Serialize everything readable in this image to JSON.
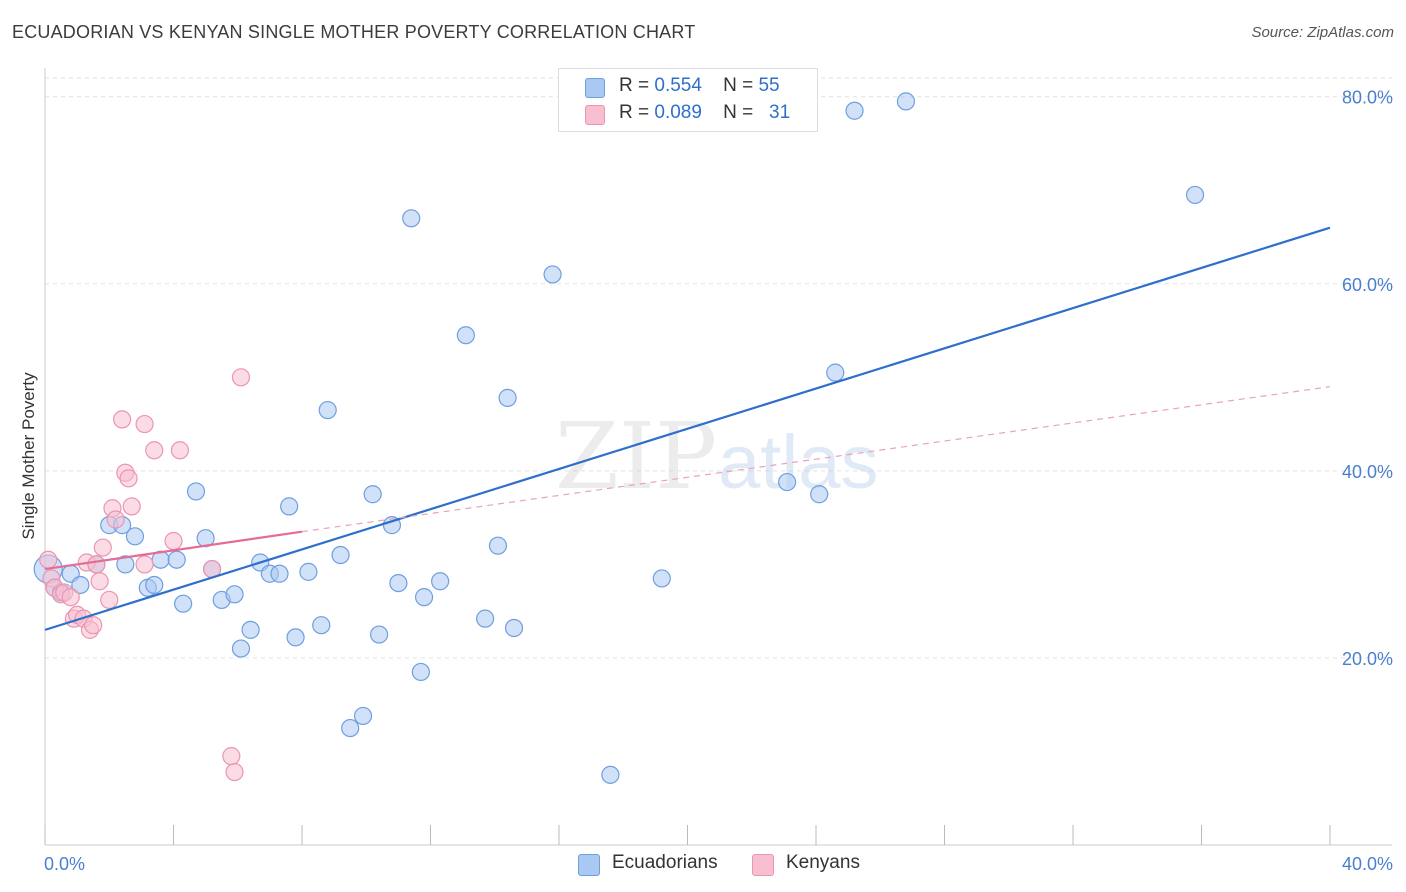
{
  "title": "ECUADORIAN VS KENYAN SINGLE MOTHER POVERTY CORRELATION CHART",
  "source": "Source: ZipAtlas.com",
  "watermark": {
    "zip": "ZIP",
    "atlas": "atlas"
  },
  "legend": {
    "rows": [
      {
        "r_label": "R =",
        "r_value": "0.554",
        "n_label": "N =",
        "n_value": "55",
        "color": "#a9c8f2",
        "border": "#6f9fdf"
      },
      {
        "r_label": "R =",
        "r_value": "0.089",
        "n_label": "N =",
        "n_value": "31",
        "color": "#f7bfd0",
        "border": "#ec94b1"
      }
    ]
  },
  "chart_data": {
    "type": "scatter",
    "title": "ECUADORIAN VS KENYAN SINGLE MOTHER POVERTY CORRELATION CHART",
    "xlabel": "",
    "ylabel": "Single Mother Poverty",
    "xlim": [
      0,
      40
    ],
    "ylim": [
      0,
      82
    ],
    "x_tick_labels": [
      "0.0%",
      "40.0%"
    ],
    "y_ticks": [
      20,
      40,
      60,
      80
    ],
    "y_tick_labels": [
      "20.0%",
      "40.0%",
      "60.0%",
      "80.0%"
    ],
    "grid": true,
    "legend_position": "top-center",
    "series": [
      {
        "name": "Ecuadorians",
        "color": "#a9c8f2",
        "stroke": "#6f9fdf",
        "points": [
          [
            0.1,
            29.5
          ],
          [
            0.3,
            27.5
          ],
          [
            0.5,
            27.0
          ],
          [
            0.8,
            29.0
          ],
          [
            1.1,
            27.8
          ],
          [
            1.6,
            30.0
          ],
          [
            2.0,
            34.2
          ],
          [
            2.4,
            34.2
          ],
          [
            2.5,
            30.0
          ],
          [
            2.8,
            33.0
          ],
          [
            3.2,
            27.5
          ],
          [
            3.4,
            27.8
          ],
          [
            3.6,
            30.5
          ],
          [
            4.1,
            30.5
          ],
          [
            4.3,
            25.8
          ],
          [
            4.7,
            37.8
          ],
          [
            5.0,
            32.8
          ],
          [
            5.2,
            29.5
          ],
          [
            5.5,
            26.2
          ],
          [
            5.9,
            26.8
          ],
          [
            6.1,
            21.0
          ],
          [
            6.4,
            23.0
          ],
          [
            6.7,
            30.2
          ],
          [
            7.0,
            29.0
          ],
          [
            7.3,
            29.0
          ],
          [
            7.6,
            36.2
          ],
          [
            7.8,
            22.2
          ],
          [
            8.2,
            29.2
          ],
          [
            8.6,
            23.5
          ],
          [
            8.8,
            46.5
          ],
          [
            9.2,
            31.0
          ],
          [
            9.5,
            12.5
          ],
          [
            9.9,
            13.8
          ],
          [
            10.2,
            37.5
          ],
          [
            10.4,
            22.5
          ],
          [
            10.8,
            34.2
          ],
          [
            11.0,
            28.0
          ],
          [
            11.4,
            67.0
          ],
          [
            11.7,
            18.5
          ],
          [
            11.8,
            26.5
          ],
          [
            12.3,
            28.2
          ],
          [
            13.1,
            54.5
          ],
          [
            13.7,
            24.2
          ],
          [
            14.1,
            32.0
          ],
          [
            14.4,
            47.8
          ],
          [
            14.6,
            23.2
          ],
          [
            15.8,
            61.0
          ],
          [
            17.6,
            7.5
          ],
          [
            19.2,
            28.5
          ],
          [
            23.1,
            38.8
          ],
          [
            24.1,
            37.5
          ],
          [
            24.6,
            50.5
          ],
          [
            25.2,
            78.5
          ],
          [
            26.8,
            79.5
          ],
          [
            35.8,
            69.5
          ]
        ],
        "trend": [
          [
            0,
            23.0
          ],
          [
            40,
            66.0
          ]
        ]
      },
      {
        "name": "Kenyans",
        "color": "#f7bfd0",
        "stroke": "#ec94b1",
        "points": [
          [
            0.1,
            30.5
          ],
          [
            0.2,
            28.5
          ],
          [
            0.3,
            27.5
          ],
          [
            0.5,
            26.8
          ],
          [
            0.6,
            27.0
          ],
          [
            0.8,
            26.5
          ],
          [
            0.9,
            24.2
          ],
          [
            1.0,
            24.6
          ],
          [
            1.2,
            24.2
          ],
          [
            1.3,
            30.2
          ],
          [
            1.4,
            23.0
          ],
          [
            1.5,
            23.5
          ],
          [
            1.6,
            30.0
          ],
          [
            1.7,
            28.2
          ],
          [
            1.8,
            31.8
          ],
          [
            2.0,
            26.2
          ],
          [
            2.1,
            36.0
          ],
          [
            2.2,
            34.8
          ],
          [
            2.4,
            45.5
          ],
          [
            2.5,
            39.8
          ],
          [
            2.6,
            39.2
          ],
          [
            2.7,
            36.2
          ],
          [
            3.1,
            45.0
          ],
          [
            3.1,
            30.0
          ],
          [
            3.4,
            42.2
          ],
          [
            4.0,
            32.5
          ],
          [
            4.2,
            42.2
          ],
          [
            5.2,
            29.5
          ],
          [
            5.8,
            9.5
          ],
          [
            5.9,
            7.8
          ],
          [
            6.1,
            50.0
          ]
        ],
        "trend_solid": [
          [
            0,
            29.5
          ],
          [
            8,
            33.5
          ]
        ],
        "trend_dashed": [
          [
            8,
            33.5
          ],
          [
            40,
            49.0
          ]
        ]
      }
    ]
  },
  "bottom_legend": [
    {
      "label": "Ecuadorians",
      "color": "#a9c8f2",
      "border": "#6f9fdf"
    },
    {
      "label": "Kenyans",
      "color": "#f7bfd0",
      "border": "#ec94b1"
    }
  ]
}
